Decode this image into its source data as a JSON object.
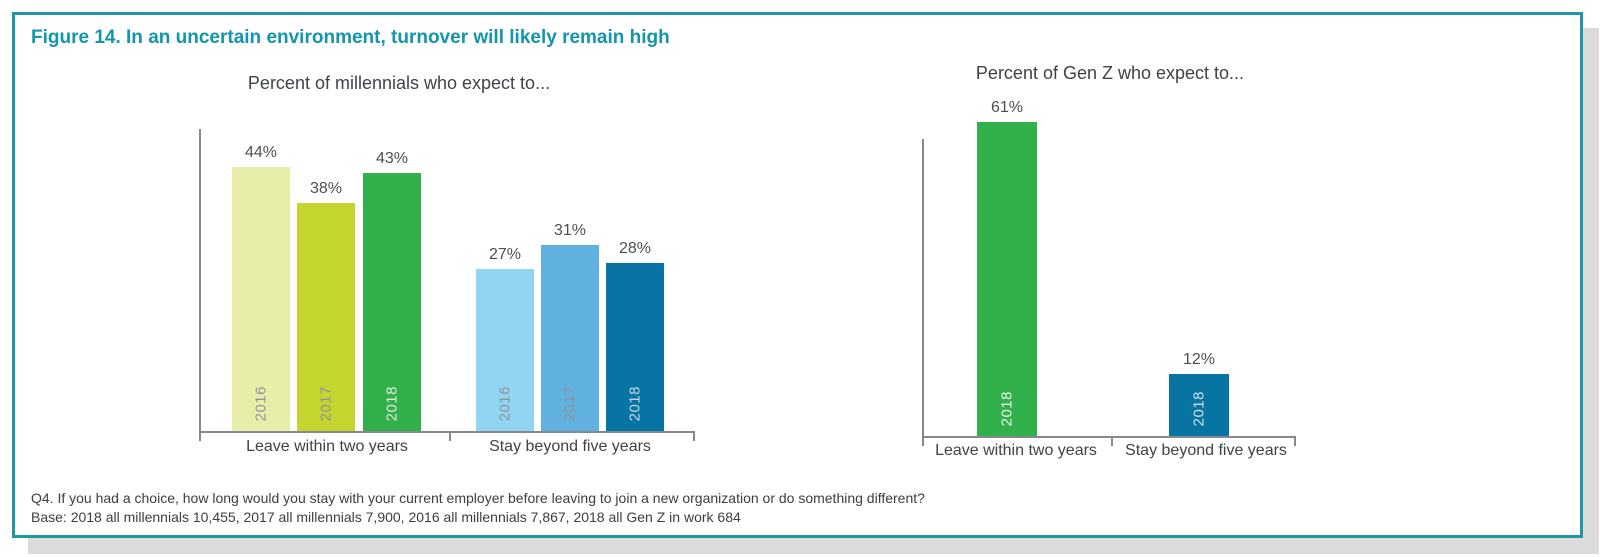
{
  "figure": {
    "title": "Figure 14. In an uncertain environment, turnover will likely remain high",
    "footnote_line1": "Q4. If you had a choice, how long would you stay with your current employer before leaving to join a new organization or do something different?",
    "footnote_line2": "Base: 2018 all millennials 10,455, 2017 all millennials 7,900, 2016 all millennials 7,867, 2018 all Gen Z in work 684"
  },
  "colors": {
    "accent_teal": "#1295ad",
    "panel_border": "#2196a9",
    "panel_shadow": "#dbdbdb",
    "axis_gray": "#85898d",
    "value_label": "#4b4f54",
    "year_label_gray": "#8f959a",
    "text_dark": "#3e4348"
  },
  "chart_data": [
    {
      "type": "bar",
      "title": "Percent of millennials who expect to...",
      "categories": [
        "Leave within two years",
        "Stay beyond five years"
      ],
      "series": [
        {
          "name": "2016",
          "values": [
            44,
            27
          ]
        },
        {
          "name": "2017",
          "values": [
            38,
            31
          ]
        },
        {
          "name": "2018",
          "values": [
            43,
            28
          ]
        }
      ],
      "value_suffix": "%",
      "ylim": [
        0,
        50
      ],
      "grid": false,
      "legend": "years labeled inside bars",
      "bar_colors": [
        [
          "#e9edaa",
          "#c4d52f",
          "#31b04b"
        ],
        [
          "#92d5f2",
          "#60b0e0",
          "#0874a4"
        ]
      ],
      "year_label_colors": [
        [
          "#8f959a",
          "#8f959a",
          "#e2ecdd"
        ],
        [
          "#8f959a",
          "#8f959a",
          "#c6d7e2"
        ]
      ]
    },
    {
      "type": "bar",
      "title": "Percent of Gen Z who expect to...",
      "categories": [
        "Leave within two years",
        "Stay beyond five years"
      ],
      "series": [
        {
          "name": "2018",
          "values": [
            61,
            12
          ]
        }
      ],
      "value_suffix": "%",
      "ylim": [
        0,
        60
      ],
      "grid": false,
      "legend": "year labeled inside bars",
      "bar_colors": [
        [
          "#31b04b"
        ],
        [
          "#0874a4"
        ]
      ],
      "year_label_colors": [
        [
          "#eef5ee"
        ],
        [
          "#d5e2ec"
        ]
      ]
    }
  ]
}
